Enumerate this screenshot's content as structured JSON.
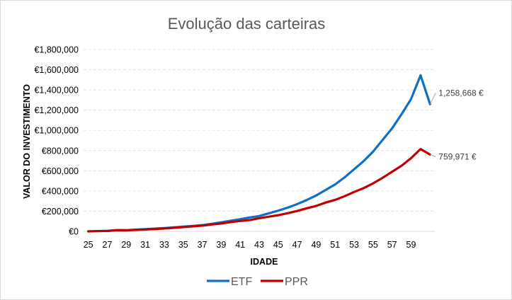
{
  "chart_data": {
    "type": "line",
    "title": "Evolução das carteiras",
    "xlabel": "IDADE",
    "ylabel": "VALOR DO INVESTIMENTO",
    "x": [
      25,
      26,
      27,
      28,
      29,
      30,
      31,
      32,
      33,
      34,
      35,
      36,
      37,
      38,
      39,
      40,
      41,
      42,
      43,
      44,
      45,
      46,
      47,
      48,
      49,
      50,
      51,
      52,
      53,
      54,
      55,
      56,
      57,
      58,
      59,
      60,
      61
    ],
    "x_tick_labels": [
      "25",
      "27",
      "29",
      "31",
      "33",
      "35",
      "37",
      "39",
      "41",
      "43",
      "45",
      "47",
      "49",
      "51",
      "53",
      "55",
      "57",
      "59"
    ],
    "ylim": [
      0,
      1800000
    ],
    "y_tick_labels": [
      "€0",
      "€200,000",
      "€400,000",
      "€600,000",
      "€800,000",
      "€1,000,000",
      "€1,200,000",
      "€1,400,000",
      "€1,600,000",
      "€1,800,000"
    ],
    "grid": "horizontal dashed",
    "legend_position": "bottom",
    "series": [
      {
        "name": "ETF",
        "color": "#0f6fc6",
        "values": [
          0,
          3000,
          5000,
          13000,
          12000,
          18000,
          22000,
          27000,
          33000,
          40000,
          47000,
          54000,
          62000,
          75000,
          90000,
          105000,
          120000,
          138000,
          152000,
          178000,
          205000,
          235000,
          270000,
          310000,
          355000,
          410000,
          465000,
          535000,
          615000,
          695000,
          790000,
          905000,
          1020000,
          1160000,
          1310000,
          1545000,
          1258668
        ],
        "end_label": "1,258,668 €"
      },
      {
        "name": "PPR",
        "color": "#c00000",
        "values": [
          0,
          3000,
          4000,
          10000,
          9000,
          15000,
          18000,
          23000,
          29000,
          35000,
          42000,
          50000,
          57000,
          68000,
          78000,
          92000,
          103000,
          112000,
          130000,
          145000,
          160000,
          180000,
          202000,
          228000,
          252000,
          285000,
          312000,
          348000,
          390000,
          428000,
          475000,
          530000,
          590000,
          650000,
          725000,
          815000,
          759971
        ],
        "end_label": "759,971 €"
      }
    ]
  }
}
